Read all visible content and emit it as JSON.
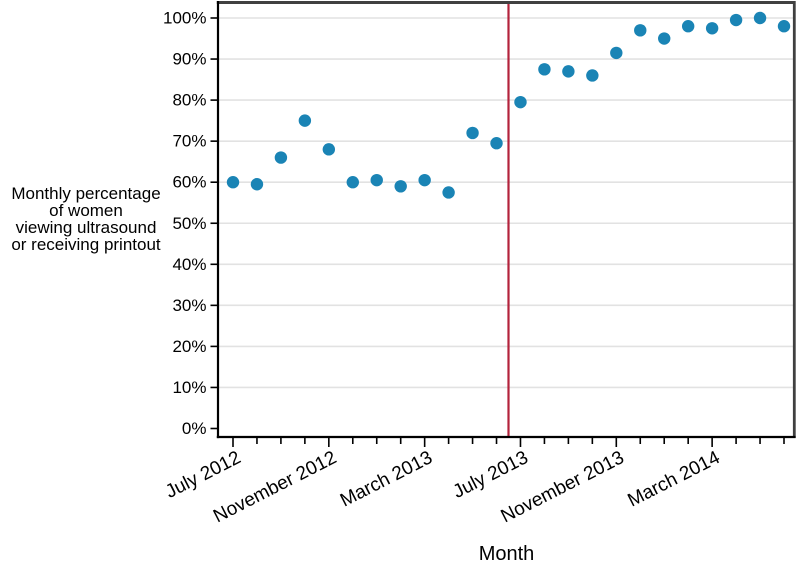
{
  "figure": {
    "background_color": "#ffffff"
  },
  "chart_data": {
    "type": "scatter",
    "title": "",
    "xlabel": "Month",
    "ylabel": "Monthly percentage of women viewing ultrasound or receiving printout",
    "ylabel_lines": [
      "Monthly percentage",
      "of women",
      "viewing ultrasound",
      "or receiving printout"
    ],
    "x": [
      "July 2012",
      "August 2012",
      "September 2012",
      "October 2012",
      "November 2012",
      "December 2012",
      "January 2013",
      "February 2013",
      "March 2013",
      "April 2013",
      "May 2013",
      "June 2013",
      "July 2013",
      "August 2013",
      "September 2013",
      "October 2013",
      "November 2013",
      "December 2013",
      "January 2014",
      "February 2014",
      "March 2014",
      "April 2014",
      "May 2014",
      "June 2014"
    ],
    "series": [
      {
        "name": "Monthly percentage of women viewing ultrasound or receiving printout",
        "values": [
          60,
          59.5,
          66,
          75,
          68,
          60,
          60.5,
          59,
          60.5,
          57.5,
          72,
          69.5,
          79.5,
          87.5,
          87,
          86,
          91.5,
          97,
          95,
          98,
          97.5,
          99.5,
          100,
          98
        ]
      }
    ],
    "x_major_ticks": {
      "indices": [
        0,
        4,
        8,
        12,
        16,
        20
      ],
      "labels": [
        "July 2012",
        "November 2012",
        "March 2013",
        "July 2013",
        "November 2013",
        "March 2014"
      ]
    },
    "y_ticks": {
      "values": [
        0,
        10,
        20,
        30,
        40,
        50,
        60,
        70,
        80,
        90,
        100
      ],
      "label_suffix": "%"
    },
    "ylim": [
      0,
      100
    ],
    "grid": "horizontal",
    "legend": "none",
    "reference_line": {
      "orientation": "vertical",
      "x_index": 11.5,
      "between": [
        "June 2013",
        "July 2013"
      ],
      "color": "#b3233c"
    },
    "point_color": "#1a84b5",
    "grid_color": "#e2e2e2",
    "axis_color": "#000000",
    "border_color": "#404040"
  }
}
